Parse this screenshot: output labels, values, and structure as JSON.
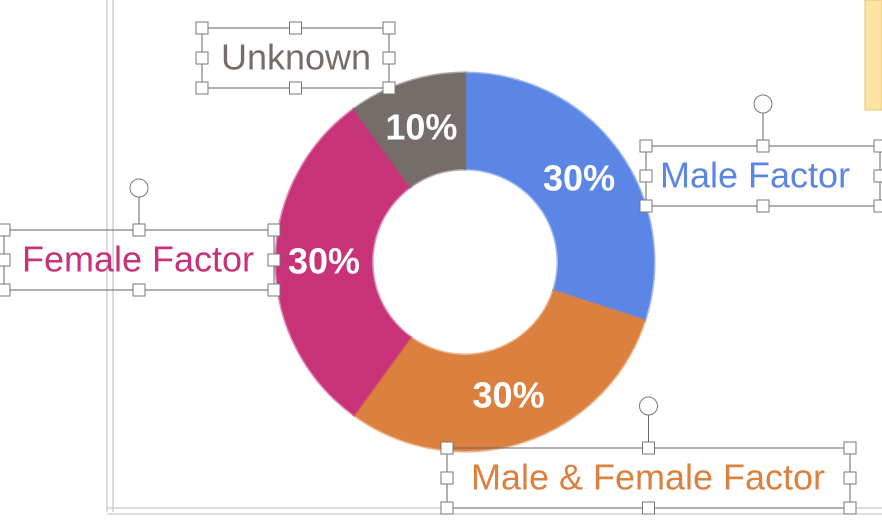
{
  "chart_data": {
    "type": "donut",
    "categories": [
      "Male Factor",
      "Male & Female Factor",
      "Female Factor",
      "Unknown"
    ],
    "values": [
      30,
      30,
      30,
      10
    ],
    "value_labels": [
      "30%",
      "30%",
      "30%",
      "10%"
    ],
    "colors": [
      "#5b86e5",
      "#dc8040",
      "#c83278",
      "#746d69"
    ]
  }
}
